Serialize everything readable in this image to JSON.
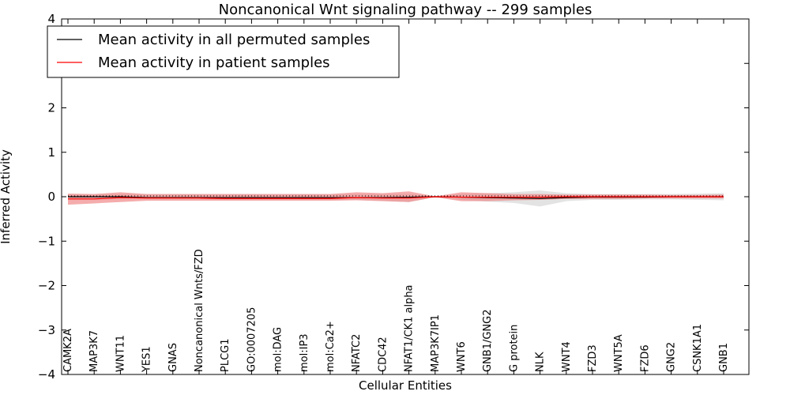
{
  "chart_data": {
    "type": "line",
    "title": "Noncanonical Wnt signaling pathway -- 299 samples",
    "xlabel": "Cellular Entities",
    "ylabel": "Inferred Activity",
    "ylim": [
      -4,
      4
    ],
    "yticks": [
      -4,
      -3,
      -2,
      -1,
      0,
      1,
      2,
      3,
      4
    ],
    "ytick_labels": [
      "−4",
      "−3",
      "−2",
      "−1",
      "0",
      "1",
      "2",
      "3",
      "4"
    ],
    "grid": false,
    "legend_position": "top-left",
    "categories": [
      "CAMK2A",
      "MAP3K7",
      "WNT11",
      "YES1",
      "GNAS",
      "Noncanonical Wnts/FZD",
      "PLCG1",
      "GO:0007205",
      "mol:DAG",
      "mol:IP3",
      "mol:Ca2+",
      "NFATC2",
      "CDC42",
      "NFAT1/CK1 alpha",
      "MAP3K7IP1",
      "WNT6",
      "GNB1/GNG2",
      "G protein",
      "NLK",
      "WNT4",
      "FZD3",
      "WNT5A",
      "FZD6",
      "GNG2",
      "CSNK1A1",
      "GNB1"
    ],
    "series": [
      {
        "name": "Mean activity in all permuted samples",
        "color": "#000000",
        "values": [
          0.0,
          0.0,
          0.0,
          -0.02,
          -0.02,
          -0.02,
          -0.02,
          -0.02,
          -0.02,
          -0.02,
          -0.02,
          -0.02,
          -0.02,
          -0.01,
          0.0,
          -0.01,
          -0.02,
          -0.03,
          -0.04,
          -0.02,
          -0.01,
          -0.01,
          -0.01,
          0.0,
          0.0,
          0.0
        ],
        "band_low": [
          -0.07,
          -0.07,
          -0.06,
          -0.06,
          -0.06,
          -0.06,
          -0.07,
          -0.07,
          -0.07,
          -0.07,
          -0.07,
          -0.07,
          -0.09,
          -0.12,
          -0.01,
          -0.07,
          -0.11,
          -0.14,
          -0.22,
          -0.1,
          -0.07,
          -0.07,
          -0.06,
          -0.06,
          -0.07,
          -0.08
        ],
        "band_high": [
          0.06,
          0.06,
          0.06,
          0.06,
          0.06,
          0.06,
          0.06,
          0.06,
          0.06,
          0.06,
          0.06,
          0.06,
          0.06,
          0.06,
          0.01,
          0.06,
          0.08,
          0.1,
          0.14,
          0.08,
          0.06,
          0.06,
          0.06,
          0.06,
          0.07,
          0.08
        ]
      },
      {
        "name": "Mean activity in patient samples",
        "color": "#ff0000",
        "band_color": "#f08080",
        "values": [
          -0.05,
          -0.05,
          -0.02,
          -0.03,
          -0.03,
          -0.03,
          -0.04,
          -0.04,
          -0.04,
          -0.04,
          -0.04,
          -0.02,
          -0.03,
          -0.03,
          0.0,
          -0.01,
          -0.01,
          -0.01,
          -0.01,
          0.0,
          0.0,
          0.0,
          0.0,
          0.0,
          0.0,
          0.0
        ],
        "band_low": [
          -0.18,
          -0.15,
          -0.12,
          -0.09,
          -0.09,
          -0.09,
          -0.09,
          -0.09,
          -0.09,
          -0.09,
          -0.09,
          -0.08,
          -0.1,
          -0.12,
          -0.01,
          -0.1,
          -0.1,
          -0.08,
          -0.07,
          -0.05,
          -0.05,
          -0.05,
          -0.04,
          -0.04,
          -0.04,
          -0.04
        ],
        "band_high": [
          0.07,
          0.06,
          0.1,
          0.06,
          0.06,
          0.06,
          0.06,
          0.06,
          0.06,
          0.06,
          0.06,
          0.1,
          0.08,
          0.12,
          0.01,
          0.1,
          0.08,
          0.06,
          0.06,
          0.05,
          0.05,
          0.05,
          0.05,
          0.04,
          0.04,
          0.05
        ]
      }
    ]
  }
}
